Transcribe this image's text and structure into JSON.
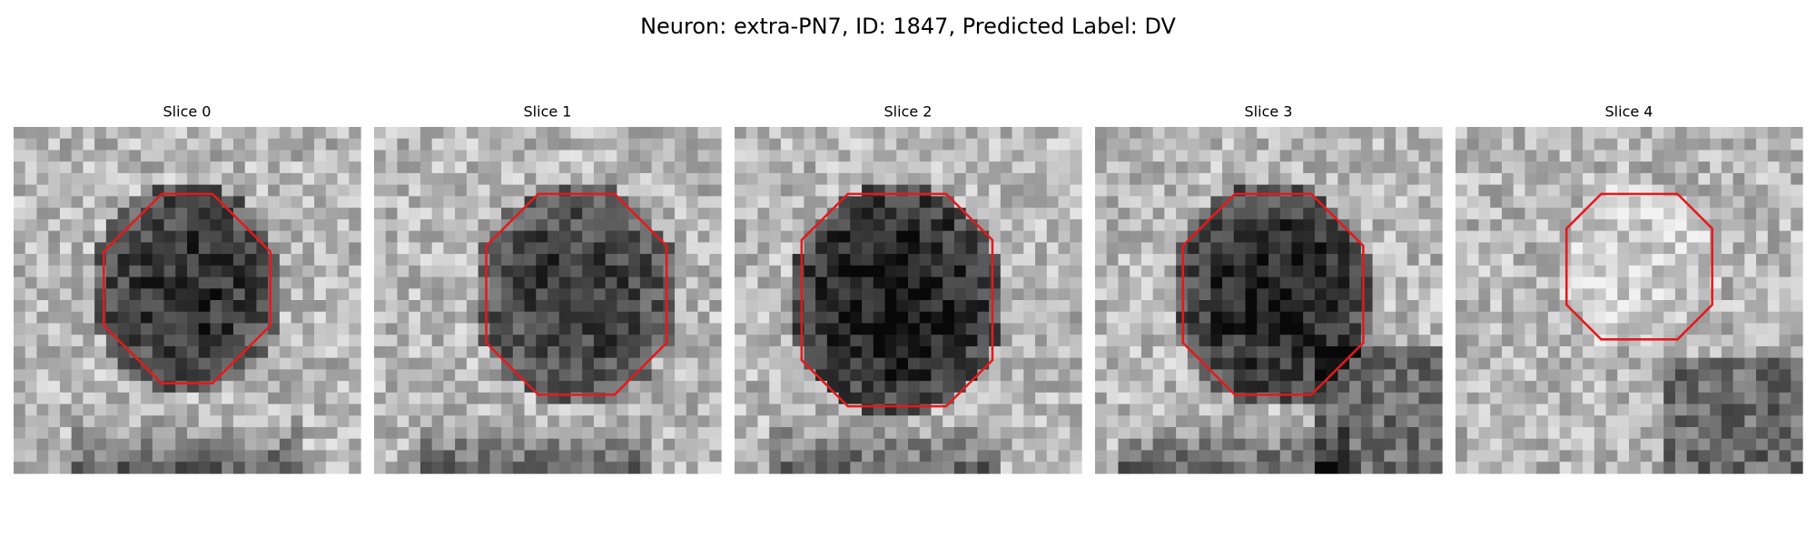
{
  "title": "Neuron: extra-PN7, ID: 1847, Predicted Label: DV",
  "panels": [
    {
      "title": "Slice 0"
    },
    {
      "title": "Slice 1"
    },
    {
      "title": "Slice 2"
    },
    {
      "title": "Slice 3"
    },
    {
      "title": "Slice 4"
    }
  ]
}
